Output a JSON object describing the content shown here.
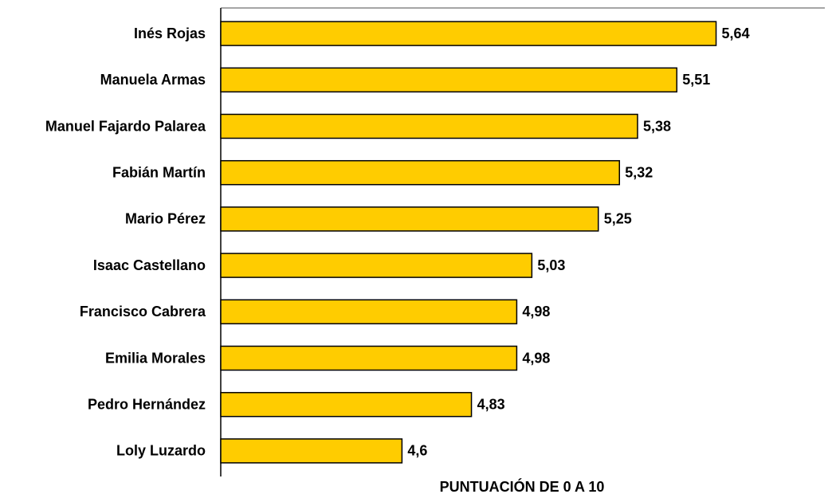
{
  "chart_data": {
    "type": "hbar",
    "x_label": "PUNTUACIÓN DE 0 A 10",
    "categories": [
      "Inés Rojas",
      "Manuela Armas",
      "Manuel Fajardo Palarea",
      "Fabián Martín",
      "Mario Pérez",
      "Isaac Castellano",
      "Francisco Cabrera",
      "Emilia Morales",
      "Pedro Hernández",
      "Loly Luzardo"
    ],
    "values": [
      5.64,
      5.51,
      5.38,
      5.32,
      5.25,
      5.03,
      4.98,
      4.98,
      4.83,
      4.6
    ],
    "value_labels": [
      "5,64",
      "5,51",
      "5,38",
      "5,32",
      "5,25",
      "5,03",
      "4,98",
      "4,98",
      "4,83",
      "4,6"
    ],
    "color": "#ffcc00",
    "xlim": [
      4,
      6
    ]
  }
}
